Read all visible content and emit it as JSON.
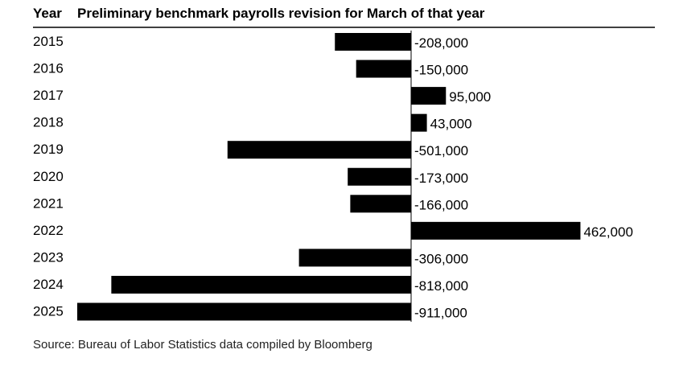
{
  "chart_data": {
    "type": "bar",
    "orientation": "horizontal",
    "category_header": "Year",
    "title": "Preliminary benchmark payrolls revision for March of that year",
    "categories": [
      "2015",
      "2016",
      "2017",
      "2018",
      "2019",
      "2020",
      "2021",
      "2022",
      "2023",
      "2024",
      "2025"
    ],
    "values": [
      -208000,
      -150000,
      95000,
      43000,
      -501000,
      -173000,
      -166000,
      462000,
      -306000,
      -818000,
      -911000
    ],
    "value_labels": [
      "-208,000",
      "-150,000",
      "95,000",
      "43,000",
      "-501,000",
      "-173,000",
      "-166,000",
      "462,000",
      "-306,000",
      "-818,000",
      "-911,000"
    ],
    "bar_color": "#000000",
    "grid": false,
    "source": "Source: Bureau of Labor Statistics data compiled by Bloomberg"
  }
}
